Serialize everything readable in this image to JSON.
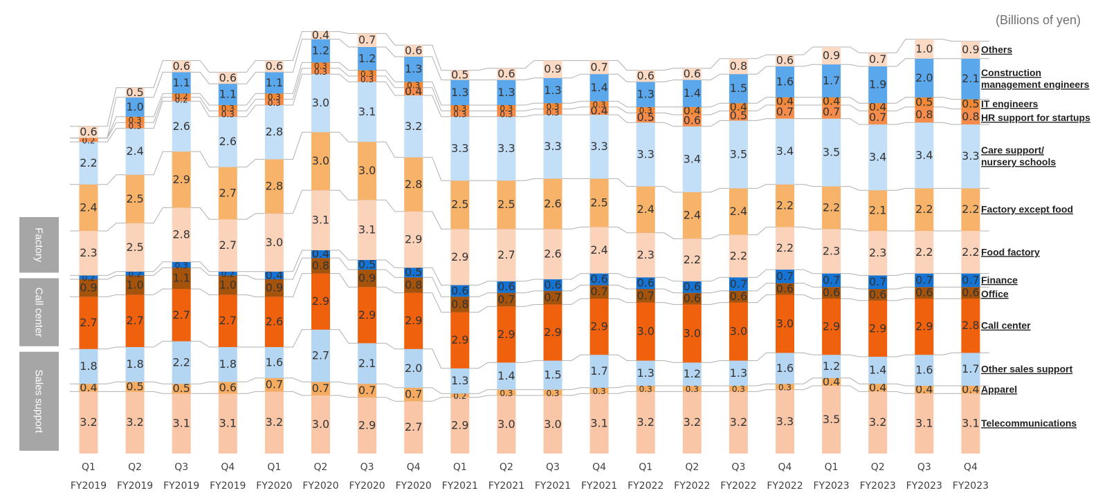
{
  "chart_data": {
    "type": "bar",
    "stacked": true,
    "unit": "(Billions of yen)",
    "categories": [
      [
        "Q1",
        "FY2019"
      ],
      [
        "Q2",
        "FY2019"
      ],
      [
        "Q3",
        "FY2019"
      ],
      [
        "Q4",
        "FY2019"
      ],
      [
        "Q1",
        "FY2020"
      ],
      [
        "Q2",
        "FY2020"
      ],
      [
        "Q3",
        "FY2020"
      ],
      [
        "Q4",
        "FY2020"
      ],
      [
        "Q1",
        "FY2021"
      ],
      [
        "Q2",
        "FY2021"
      ],
      [
        "Q3",
        "FY2021"
      ],
      [
        "Q4",
        "FY2021"
      ],
      [
        "Q1",
        "FY2022"
      ],
      [
        "Q2",
        "FY2022"
      ],
      [
        "Q3",
        "FY2022"
      ],
      [
        "Q4",
        "FY2022"
      ],
      [
        "Q1",
        "FY2023"
      ],
      [
        "Q2",
        "FY2023"
      ],
      [
        "Q3",
        "FY2023"
      ],
      [
        "Q4",
        "FY2023"
      ]
    ],
    "series": [
      {
        "name": "Telecommunications",
        "color": "#f9c7a7",
        "values": [
          3.2,
          3.2,
          3.1,
          3.1,
          3.2,
          3.0,
          2.9,
          2.7,
          2.9,
          3.0,
          3.0,
          3.1,
          3.2,
          3.2,
          3.2,
          3.3,
          3.5,
          3.2,
          3.1,
          3.1
        ]
      },
      {
        "name": "Apparel",
        "color": "#f6ac60",
        "values": [
          0.4,
          0.5,
          0.5,
          0.6,
          0.7,
          0.7,
          0.7,
          0.7,
          0.2,
          0.3,
          0.3,
          0.3,
          0.3,
          0.3,
          0.3,
          0.3,
          0.4,
          0.4,
          0.4,
          0.4
        ]
      },
      {
        "name": "Other sales support",
        "color": "#b5d6f2",
        "values": [
          1.8,
          1.8,
          2.2,
          1.8,
          1.6,
          2.7,
          2.1,
          2.0,
          1.3,
          1.4,
          1.5,
          1.7,
          1.3,
          1.2,
          1.3,
          1.6,
          1.2,
          1.4,
          1.6,
          1.7
        ]
      },
      {
        "name": "Call center",
        "color": "#f0610d",
        "values": [
          2.7,
          2.7,
          2.7,
          2.7,
          2.6,
          2.9,
          2.9,
          2.9,
          2.9,
          2.9,
          2.9,
          2.9,
          3.0,
          3.0,
          3.0,
          3.0,
          2.9,
          2.9,
          2.9,
          2.8
        ]
      },
      {
        "name": "Office",
        "color": "#a4530d",
        "values": [
          0.9,
          1.0,
          1.1,
          1.0,
          0.9,
          0.8,
          0.9,
          0.8,
          0.8,
          0.7,
          0.7,
          0.7,
          0.7,
          0.6,
          0.6,
          0.6,
          0.6,
          0.6,
          0.6,
          0.6
        ]
      },
      {
        "name": "Finance",
        "color": "#1573d4",
        "values": [
          0.2,
          0.2,
          0.3,
          0.2,
          0.4,
          0.4,
          0.5,
          0.5,
          0.6,
          0.6,
          0.6,
          0.6,
          0.6,
          0.6,
          0.7,
          0.7,
          0.7,
          0.7,
          0.7,
          0.7
        ]
      },
      {
        "name": "Food factory",
        "color": "#fbd3bb",
        "values": [
          2.3,
          2.5,
          2.8,
          2.7,
          3.0,
          3.1,
          3.1,
          2.9,
          2.9,
          2.7,
          2.6,
          2.4,
          2.3,
          2.2,
          2.2,
          2.2,
          2.3,
          2.3,
          2.2,
          2.2
        ]
      },
      {
        "name": "Factory except food",
        "color": "#f7b36a",
        "values": [
          2.4,
          2.5,
          2.9,
          2.7,
          2.8,
          3.0,
          3.0,
          2.8,
          2.5,
          2.5,
          2.6,
          2.5,
          2.4,
          2.4,
          2.4,
          2.2,
          2.2,
          2.1,
          2.2,
          2.2
        ]
      },
      {
        "name": "Care support/ nursery schools",
        "color": "#c3dff8",
        "values": [
          2.2,
          2.4,
          2.6,
          2.6,
          2.8,
          3.0,
          3.1,
          3.2,
          3.3,
          3.3,
          3.3,
          3.3,
          3.3,
          3.4,
          3.5,
          3.4,
          3.5,
          3.4,
          3.4,
          3.3
        ]
      },
      {
        "name": "HR support for startups",
        "color": "#f58c4b",
        "values": [
          0.2,
          0.3,
          0.2,
          0.3,
          0.3,
          0.3,
          0.3,
          0.4,
          0.3,
          0.3,
          0.3,
          0.4,
          0.5,
          0.6,
          0.5,
          0.7,
          0.7,
          0.7,
          0.8,
          0.8
        ]
      },
      {
        "name": "IT engineers",
        "color": "#f08836",
        "values": [
          0.0,
          0.3,
          0.2,
          0.3,
          0.3,
          0.3,
          0.3,
          0.3,
          0.3,
          0.3,
          0.3,
          0.3,
          0.3,
          0.4,
          0.4,
          0.4,
          0.4,
          0.4,
          0.5,
          0.5
        ]
      },
      {
        "name": "Construction management engineers",
        "color": "#5aa7ec",
        "values": [
          0.0,
          1.0,
          1.1,
          1.1,
          1.1,
          1.2,
          1.2,
          1.3,
          1.3,
          1.3,
          1.3,
          1.4,
          1.3,
          1.4,
          1.5,
          1.6,
          1.7,
          1.9,
          2.0,
          2.1
        ]
      },
      {
        "name": "Others",
        "color": "#fcd9c3",
        "values": [
          0.6,
          0.5,
          0.6,
          0.6,
          0.6,
          0.4,
          0.7,
          0.6,
          0.5,
          0.6,
          0.9,
          0.7,
          0.6,
          0.6,
          0.8,
          0.6,
          0.9,
          0.7,
          1.0,
          0.9
        ]
      }
    ],
    "legend_labels": [
      {
        "series": 12,
        "lines": [
          "Others"
        ]
      },
      {
        "series": 11,
        "lines": [
          "Construction",
          "management engineers"
        ]
      },
      {
        "series": 10,
        "lines": [
          "IT engineers"
        ]
      },
      {
        "series": 9,
        "lines": [
          "HR support for startups"
        ]
      },
      {
        "series": 8,
        "lines": [
          "Care support/",
          "nursery schools"
        ]
      },
      {
        "series": 7,
        "lines": [
          "Factory except food"
        ]
      },
      {
        "series": 6,
        "lines": [
          "Food factory"
        ]
      },
      {
        "series": 5,
        "lines": [
          "Finance"
        ]
      },
      {
        "series": 4,
        "lines": [
          "Office"
        ]
      },
      {
        "series": 3,
        "lines": [
          "Call center"
        ]
      },
      {
        "series": 2,
        "lines": [
          "Other sales support"
        ]
      },
      {
        "series": 1,
        "lines": [
          "Apparel"
        ]
      },
      {
        "series": 0,
        "lines": [
          "Telecommunications"
        ]
      }
    ],
    "legend_placement": "right",
    "groups": [
      {
        "label": "Factory",
        "series": [
          6,
          7
        ]
      },
      {
        "label": "Call center",
        "series": [
          3,
          4,
          5
        ]
      },
      {
        "label": "Sales support",
        "series": [
          0,
          1,
          2
        ]
      }
    ],
    "group_color": "#a6a6a6",
    "connector_color": "#b0b0b0",
    "grid": false
  }
}
